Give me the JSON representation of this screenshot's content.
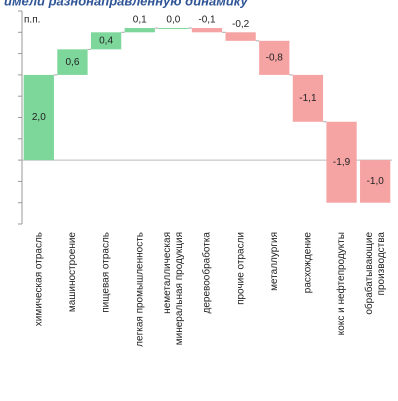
{
  "chart_data": {
    "type": "waterfall",
    "title": "имели разнонаправленную динамику",
    "y_label": "п.п.",
    "categories": [
      "химическая отрасль",
      "машиностроение",
      "пищевая отрасль",
      "легкая промышленность",
      [
        "неметаллическая",
        "минеральная продукция"
      ],
      "деревообработка",
      "прочие отрасли",
      "металлургия",
      "расхождение",
      "кокс и нефтепродукты",
      [
        "обрабатывающие",
        "производства"
      ]
    ],
    "values": [
      2.0,
      0.6,
      0.4,
      0.1,
      0.0,
      -0.1,
      -0.2,
      -0.8,
      -1.1,
      -1.9,
      -1.0
    ],
    "value_labels": [
      "2,0",
      "0,6",
      "0,4",
      "0,1",
      "0,0",
      "-0,1",
      "-0,2",
      "-0,8",
      "-1,1",
      "-1,9",
      "-1,0"
    ],
    "positive_color": "#7dd69a",
    "negative_color": "#f6a3a3",
    "ylim": [
      -1.5,
      3.5
    ],
    "yticks": [
      -1.5,
      -1.0,
      -0.5,
      0,
      0.5,
      1.0,
      1.5,
      2.0,
      2.5,
      3.0,
      3.5
    ]
  }
}
